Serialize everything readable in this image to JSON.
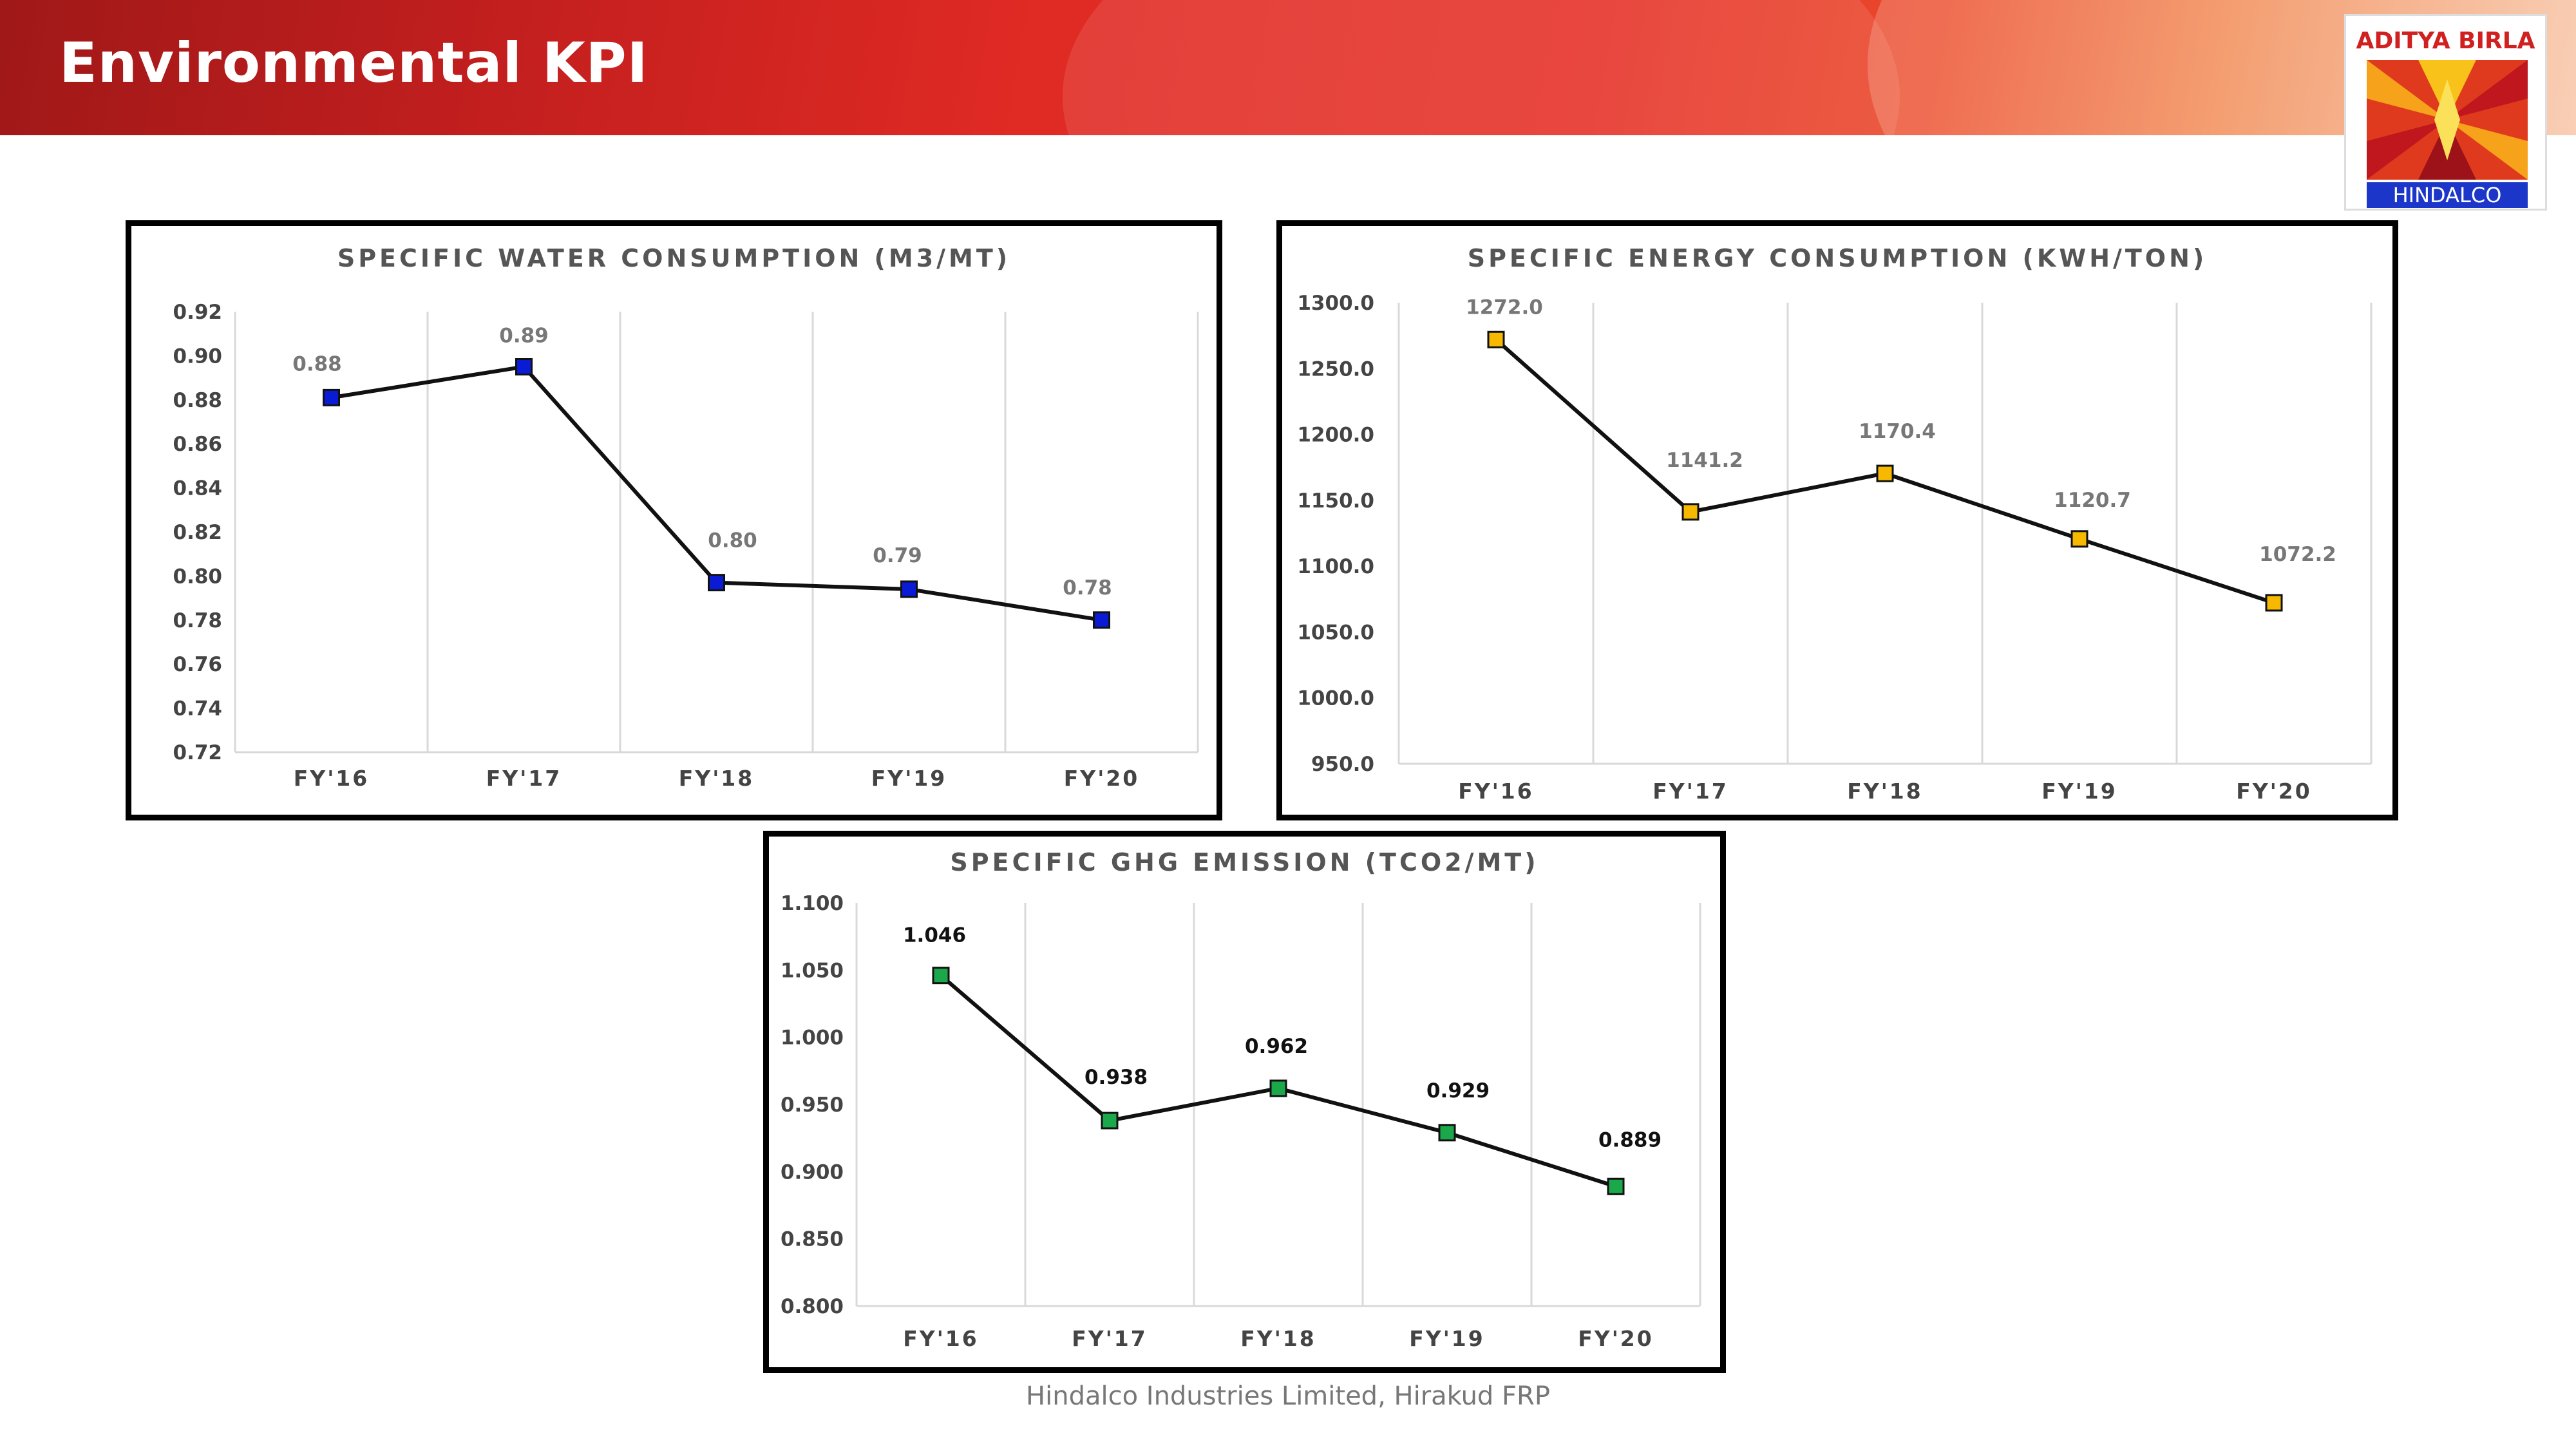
{
  "header": {
    "title": "Environmental KPI",
    "logo": {
      "top_text": "ADITYA BIRLA",
      "bottom_text": "HINDALCO"
    }
  },
  "footer": {
    "text": "Hindalco Industries Limited, Hirakud FRP"
  },
  "colors": {
    "water_marker": "#0a1bd6",
    "energy_marker": "#f7b800",
    "ghg_marker": "#1aa84a",
    "line": "#111111"
  },
  "chart_data": [
    {
      "type": "line",
      "title": "SPECIFIC WATER CONSUMPTION (M3/MT)",
      "categories": [
        "FY'16",
        "FY'17",
        "FY'18",
        "FY'19",
        "FY'20"
      ],
      "values": [
        0.881,
        0.895,
        0.797,
        0.794,
        0.78
      ],
      "data_labels": [
        "0.88",
        "0.89",
        "0.80",
        "0.79",
        "0.78"
      ],
      "yticks": [
        "0.92",
        "0.90",
        "0.88",
        "0.86",
        "0.84",
        "0.82",
        "0.80",
        "0.78",
        "0.76",
        "0.74",
        "0.72"
      ],
      "ylim": [
        0.72,
        0.92
      ],
      "grid": "vertical",
      "legend": "none"
    },
    {
      "type": "line",
      "title": "SPECIFIC ENERGY CONSUMPTION (KWH/TON)",
      "categories": [
        "FY'16",
        "FY'17",
        "FY'18",
        "FY'19",
        "FY'20"
      ],
      "values": [
        1272.0,
        1141.2,
        1170.4,
        1120.7,
        1072.2
      ],
      "data_labels": [
        "1272.0",
        "1141.2",
        "1170.4",
        "1120.7",
        "1072.2"
      ],
      "yticks": [
        "1300.0",
        "1250.0",
        "1200.0",
        "1150.0",
        "1100.0",
        "1050.0",
        "1000.0",
        "950.0"
      ],
      "ylim": [
        950.0,
        1300.0
      ],
      "grid": "vertical",
      "legend": "none"
    },
    {
      "type": "line",
      "title": "SPECIFIC GHG EMISSION (TCO2/MT)",
      "categories": [
        "FY'16",
        "FY'17",
        "FY'18",
        "FY'19",
        "FY'20"
      ],
      "values": [
        1.046,
        0.938,
        0.962,
        0.929,
        0.889
      ],
      "data_labels": [
        "1.046",
        "0.938",
        "0.962",
        "0.929",
        "0.889"
      ],
      "yticks": [
        "1.100",
        "1.050",
        "1.000",
        "0.950",
        "0.900",
        "0.850",
        "0.800"
      ],
      "ylim": [
        0.8,
        1.1
      ],
      "grid": "vertical",
      "legend": "none"
    }
  ]
}
